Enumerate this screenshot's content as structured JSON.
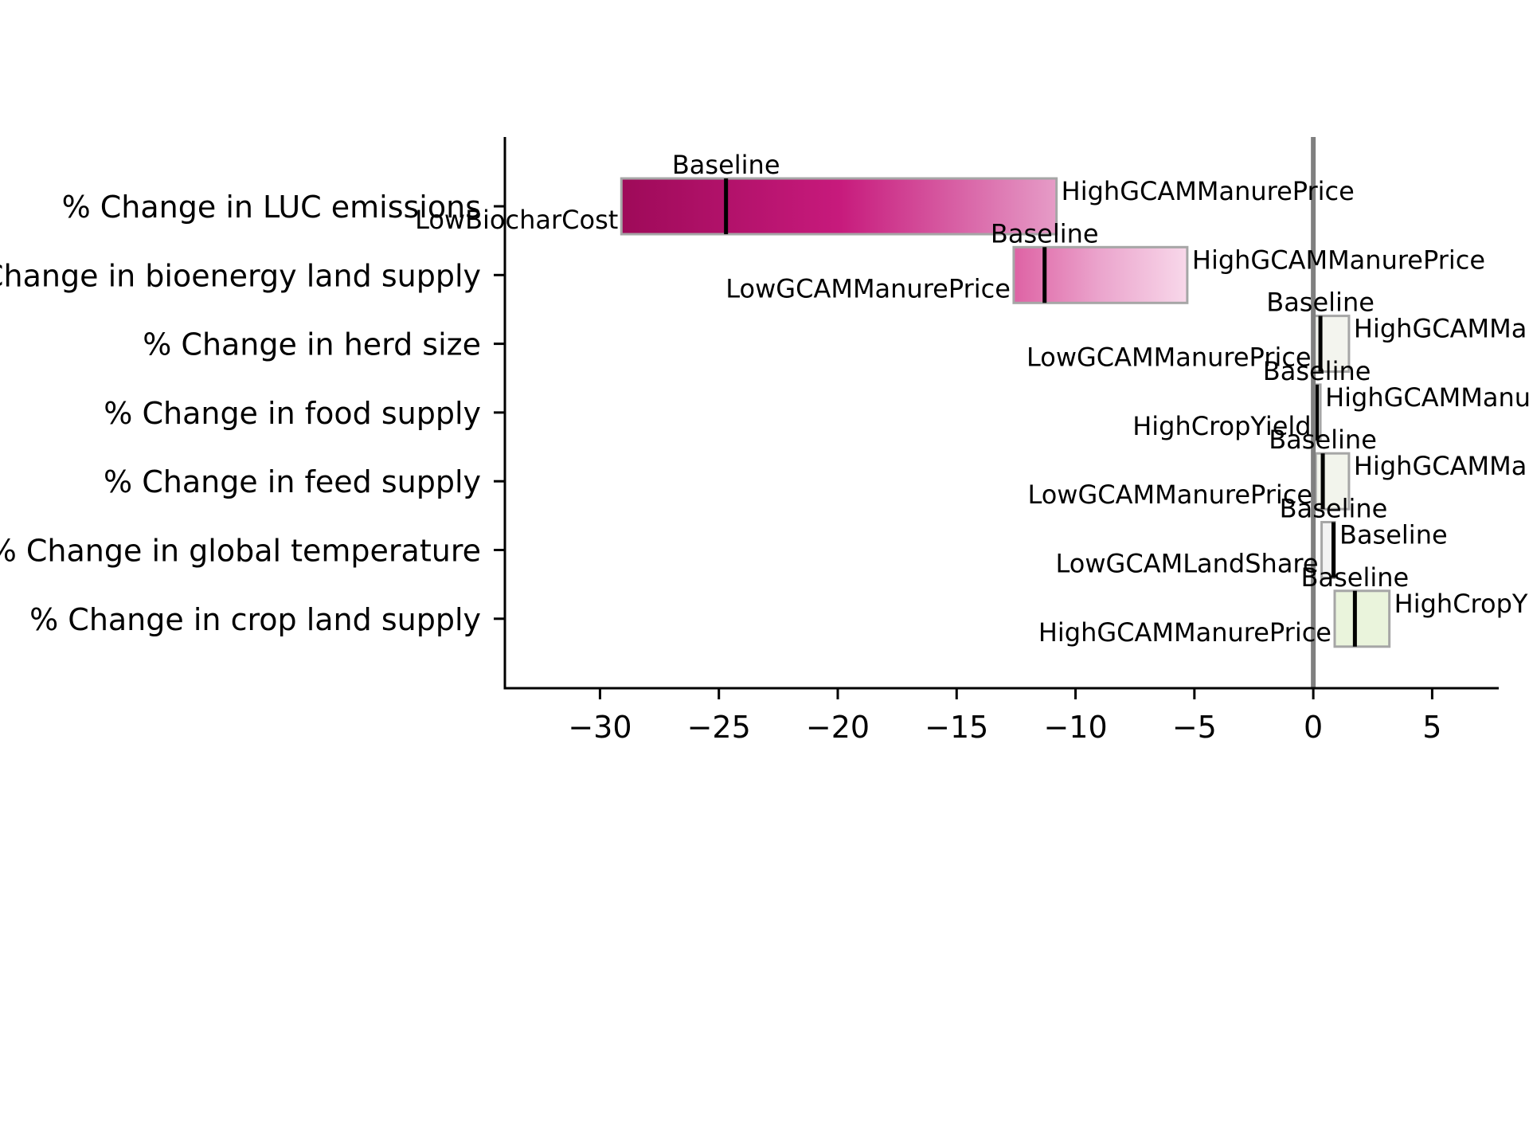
{
  "chart_data": {
    "type": "bar",
    "subtype": "tornado",
    "title": "",
    "xlabel": "",
    "ylabel": "",
    "xlim": [
      -34,
      7.8
    ],
    "xticks": [
      -30,
      -25,
      -20,
      -15,
      -10,
      -5,
      0,
      5
    ],
    "xtick_labels": [
      "−30",
      "−25",
      "−20",
      "−15",
      "−10",
      "−5",
      "0",
      "5"
    ],
    "reference_line_x": 0,
    "grid": false,
    "legend": "none",
    "bar_border_color": "#a6a6a6",
    "baseline_marker_color": "#000000",
    "rows": [
      {
        "category": "% Change in LUC emissions",
        "low": -29.1,
        "high": -10.8,
        "baseline": -24.7,
        "low_label": "LowBiocharCost",
        "high_label": "HighGCAMManurePrice",
        "baseline_label": "Baseline",
        "gradient": [
          "#9e0a59",
          "#c71a7c",
          "#e69cc7"
        ]
      },
      {
        "category": "% Change in bioenergy land supply",
        "low": -12.6,
        "high": -5.3,
        "baseline": -11.3,
        "low_label": "LowGCAMManurePrice",
        "high_label": "HighGCAMManurePrice",
        "baseline_label": "Baseline",
        "gradient": [
          "#de62a4",
          "#eba5cd",
          "#f8d8ea"
        ]
      },
      {
        "category": "% Change in herd size",
        "low": 0.05,
        "high": 1.5,
        "baseline": 0.3,
        "low_label": "LowGCAMManurePrice",
        "high_label": "HighGCAMManurePrice",
        "baseline_label": "Baseline",
        "gradient": [
          "#f3f4ee",
          "#f3f4ee",
          "#f3f4ee"
        ]
      },
      {
        "category": "% Change in food supply",
        "low": 0.05,
        "high": 0.3,
        "baseline": 0.15,
        "low_label": "HighCropYield",
        "high_label": "HighGCAMManurePrice",
        "baseline_label": "Baseline",
        "gradient": [
          "#f3f4ee",
          "#f3f4ee",
          "#f3f4ee"
        ]
      },
      {
        "category": "% Change in feed supply",
        "low": 0.1,
        "high": 1.5,
        "baseline": 0.4,
        "low_label": "LowGCAMManurePrice",
        "high_label": "HighGCAMManurePrice",
        "baseline_label": "Baseline",
        "gradient": [
          "#f2f4ec",
          "#f2f4ec",
          "#f2f4ec"
        ]
      },
      {
        "category": "% Change in global temperature",
        "low": 0.35,
        "high": 0.9,
        "baseline": 0.85,
        "low_label": "LowGCAMLandShare",
        "high_label": "Baseline",
        "baseline_label": "Baseline",
        "gradient": [
          "#f3f3f3",
          "#f3f3f3",
          "#f3f3f3"
        ]
      },
      {
        "category": "% Change in crop land supply",
        "low": 0.9,
        "high": 3.2,
        "baseline": 1.75,
        "low_label": "HighGCAMManurePrice",
        "high_label": "HighCropYield",
        "baseline_label": "Baseline",
        "gradient": [
          "#eaf4dc",
          "#eaf4dc",
          "#eaf4dc"
        ]
      }
    ]
  }
}
